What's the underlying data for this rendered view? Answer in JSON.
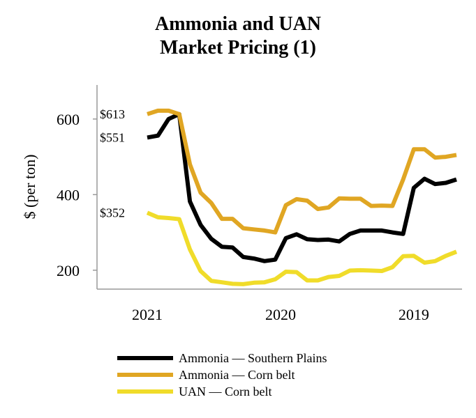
{
  "title_lines": [
    "Ammonia and UAN",
    "Market Pricing (1)"
  ],
  "chart_data": {
    "type": "line",
    "title": "Ammonia and UAN Market Pricing (1)",
    "xlabel": "",
    "ylabel": "$ (per ton)",
    "ylim": [
      150,
      690
    ],
    "yticks": [
      200,
      400,
      600
    ],
    "x_direction": "reversed",
    "x_tick_labels": [
      {
        "label": "2021",
        "index": 0
      },
      {
        "label": "2020",
        "index": 12.5
      },
      {
        "label": "2019",
        "index": 25
      }
    ],
    "series": [
      {
        "name": "Ammonia — Southern Plains",
        "color": "#000000",
        "values": [
          551,
          556,
          600,
          613,
          382,
          320,
          283,
          262,
          260,
          235,
          231,
          224,
          228,
          285,
          295,
          282,
          280,
          281,
          276,
          296,
          305,
          305,
          305,
          300,
          296,
          418,
          442,
          428,
          431,
          440
        ]
      },
      {
        "name": "Ammonia — Corn belt",
        "color": "#E0A623",
        "values": [
          613,
          622,
          622,
          613,
          480,
          405,
          378,
          336,
          336,
          311,
          308,
          305,
          300,
          372,
          388,
          384,
          362,
          366,
          390,
          389,
          389,
          370,
          371,
          370,
          440,
          520,
          520,
          498,
          500,
          505
        ]
      },
      {
        "name": "UAN — Corn belt",
        "color": "#F0DC2A",
        "values": [
          352,
          340,
          338,
          335,
          255,
          198,
          172,
          168,
          164,
          163,
          167,
          168,
          176,
          196,
          195,
          173,
          173,
          182,
          185,
          199,
          200,
          199,
          198,
          208,
          237,
          238,
          220,
          224,
          238,
          249
        ]
      }
    ],
    "annotations": [
      {
        "text": "$613",
        "series": 1,
        "index": 0
      },
      {
        "text": "$551",
        "series": 0,
        "index": 0
      },
      {
        "text": "$352",
        "series": 2,
        "index": 0
      }
    ],
    "legend_position": "bottom"
  }
}
